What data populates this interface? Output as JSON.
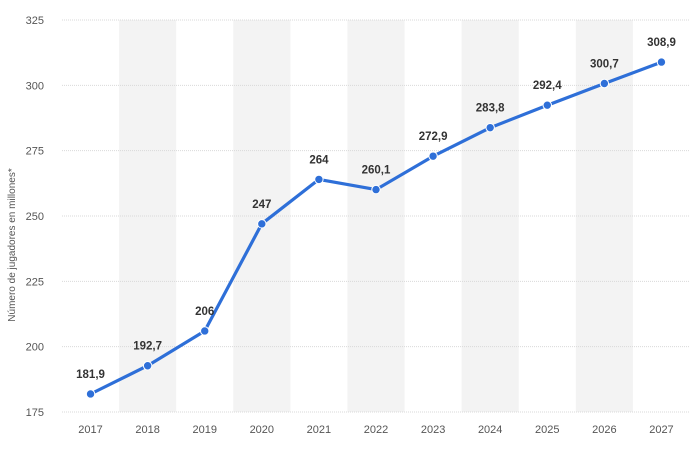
{
  "chart_data": {
    "type": "line",
    "categories": [
      "2017",
      "2018",
      "2019",
      "2020",
      "2021",
      "2022",
      "2023",
      "2024",
      "2025",
      "2026",
      "2027"
    ],
    "series": [
      {
        "values": [
          181.9,
          192.7,
          206,
          247,
          264,
          260.1,
          272.9,
          283.8,
          292.4,
          300.7,
          308.9
        ],
        "labels": [
          "181,9",
          "192,7",
          "206",
          "247",
          "264",
          "260,1",
          "272,9",
          "283,8",
          "292,4",
          "300,7",
          "308,9"
        ],
        "color": "#2e6fd8"
      }
    ],
    "ylabel": "Número de jugadores en millones*",
    "xlabel": "",
    "ylim": [
      175,
      325
    ],
    "yticks": [
      175,
      200,
      225,
      250,
      275,
      300,
      325
    ],
    "grid": true,
    "band_color": "#f3f3f3",
    "grid_color": "#d9d9d9"
  }
}
